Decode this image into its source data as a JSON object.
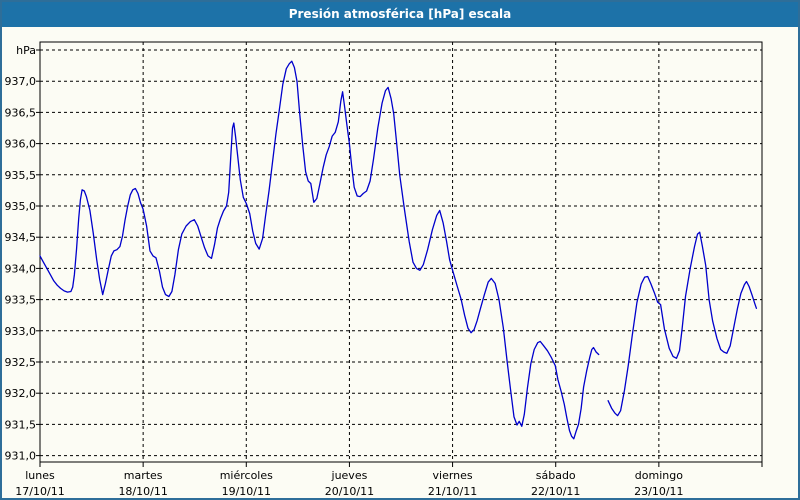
{
  "title_bar": {
    "title": "Presión atmosférica [hPa] escala",
    "bg_color": "#1d72a8",
    "text_color": "#ffffff"
  },
  "colors": {
    "outer_border": "#2e6e99",
    "background": "#fcfcf4",
    "plot_border": "#000000",
    "grid": "#000000",
    "axis_text": "#000000",
    "line": "#0000cc"
  },
  "chart_data": {
    "type": "line",
    "title": "Presión atmosférica [hPa] escala",
    "ylabel": "hPa",
    "top_axis_label": "hPa",
    "decimal_separator": ",",
    "grid": true,
    "ylim": [
      931.0,
      937.5
    ],
    "ytick_step": 0.5,
    "ytick_labels": [
      "937,0",
      "936,5",
      "936,0",
      "935,5",
      "935,0",
      "934,5",
      "934,0",
      "933,5",
      "933,0",
      "932,5",
      "932,0",
      "931,5",
      "931,0"
    ],
    "x_axis": {
      "hours_per_day": 24,
      "days": [
        {
          "name": "lunes",
          "date": "17/10/11"
        },
        {
          "name": "martes",
          "date": "18/10/11"
        },
        {
          "name": "miércoles",
          "date": "19/10/11"
        },
        {
          "name": "jueves",
          "date": "20/10/11"
        },
        {
          "name": "viernes",
          "date": "21/10/11"
        },
        {
          "name": "sábado",
          "date": "22/10/11"
        },
        {
          "name": "domingo",
          "date": "23/10/11"
        }
      ]
    },
    "series": [
      {
        "name": "Presión atmosférica",
        "color": "#0000cc",
        "unit": "hPa",
        "segments": [
          [
            [
              0,
              934.2
            ],
            [
              0.8,
              934.1
            ],
            [
              1.6,
              934.0
            ],
            [
              2.4,
              933.9
            ],
            [
              3.2,
              933.8
            ],
            [
              4.0,
              933.73
            ],
            [
              4.8,
              933.68
            ],
            [
              5.6,
              933.64
            ],
            [
              6.4,
              933.62
            ],
            [
              7.2,
              933.63
            ],
            [
              7.6,
              933.7
            ],
            [
              8.0,
              933.9
            ],
            [
              8.5,
              934.3
            ],
            [
              9.0,
              934.8
            ],
            [
              9.4,
              935.1
            ],
            [
              9.8,
              935.26
            ],
            [
              10.3,
              935.24
            ],
            [
              10.8,
              935.15
            ],
            [
              11.6,
              934.93
            ],
            [
              12.4,
              934.56
            ],
            [
              13.2,
              934.14
            ],
            [
              13.9,
              933.82
            ],
            [
              14.6,
              933.58
            ],
            [
              15.2,
              933.75
            ],
            [
              15.9,
              933.98
            ],
            [
              16.6,
              934.2
            ],
            [
              17.2,
              934.28
            ],
            [
              17.9,
              934.3
            ],
            [
              18.6,
              934.35
            ],
            [
              19.2,
              934.52
            ],
            [
              19.8,
              934.78
            ],
            [
              20.4,
              935.0
            ],
            [
              21.0,
              935.18
            ],
            [
              21.6,
              935.26
            ],
            [
              22.2,
              935.28
            ],
            [
              22.8,
              935.2
            ],
            [
              23.4,
              935.05
            ],
            [
              24.0,
              934.95
            ],
            [
              24.8,
              934.68
            ],
            [
              25.6,
              934.28
            ],
            [
              26.3,
              934.2
            ],
            [
              27.0,
              934.17
            ],
            [
              27.8,
              933.95
            ],
            [
              28.5,
              933.7
            ],
            [
              29.2,
              933.58
            ],
            [
              30.0,
              933.55
            ],
            [
              30.7,
              933.63
            ],
            [
              31.4,
              933.9
            ],
            [
              32.2,
              934.3
            ],
            [
              33.0,
              934.55
            ],
            [
              34.0,
              934.68
            ],
            [
              35.0,
              934.75
            ],
            [
              35.9,
              934.78
            ],
            [
              36.7,
              934.68
            ],
            [
              37.5,
              934.5
            ],
            [
              38.3,
              934.33
            ],
            [
              39.1,
              934.2
            ],
            [
              39.9,
              934.16
            ],
            [
              40.6,
              934.38
            ],
            [
              41.3,
              934.65
            ],
            [
              42.0,
              934.8
            ],
            [
              42.7,
              934.92
            ],
            [
              43.4,
              935.0
            ],
            [
              43.9,
              935.22
            ],
            [
              44.4,
              935.8
            ],
            [
              44.8,
              936.25
            ],
            [
              45.1,
              936.33
            ],
            [
              45.5,
              936.12
            ],
            [
              46.0,
              935.8
            ],
            [
              46.6,
              935.42
            ],
            [
              47.3,
              935.14
            ],
            [
              48.0,
              935.04
            ],
            [
              48.8,
              934.88
            ],
            [
              49.5,
              934.6
            ],
            [
              50.2,
              934.4
            ],
            [
              51.0,
              934.31
            ],
            [
              51.8,
              934.48
            ],
            [
              52.5,
              934.85
            ],
            [
              53.3,
              935.25
            ],
            [
              54.1,
              935.7
            ],
            [
              54.9,
              936.15
            ],
            [
              55.7,
              936.55
            ],
            [
              56.5,
              936.95
            ],
            [
              57.3,
              937.2
            ],
            [
              58.0,
              937.28
            ],
            [
              58.6,
              937.32
            ],
            [
              59.2,
              937.22
            ],
            [
              59.8,
              937.0
            ],
            [
              60.4,
              936.5
            ],
            [
              61.1,
              935.99
            ],
            [
              61.8,
              935.55
            ],
            [
              62.4,
              935.4
            ],
            [
              63.0,
              935.36
            ],
            [
              63.7,
              935.06
            ],
            [
              64.4,
              935.12
            ],
            [
              65.1,
              935.35
            ],
            [
              65.9,
              935.62
            ],
            [
              66.6,
              935.82
            ],
            [
              67.3,
              935.95
            ],
            [
              68.0,
              936.12
            ],
            [
              68.7,
              936.18
            ],
            [
              69.4,
              936.35
            ],
            [
              70.0,
              936.68
            ],
            [
              70.4,
              936.83
            ],
            [
              70.9,
              936.58
            ],
            [
              71.4,
              936.3
            ],
            [
              72.0,
              936.0
            ],
            [
              72.5,
              935.65
            ],
            [
              73.1,
              935.3
            ],
            [
              73.8,
              935.16
            ],
            [
              74.5,
              935.15
            ],
            [
              75.2,
              935.2
            ],
            [
              76.0,
              935.24
            ],
            [
              76.8,
              935.4
            ],
            [
              77.6,
              935.75
            ],
            [
              78.6,
              936.25
            ],
            [
              79.6,
              936.65
            ],
            [
              80.4,
              936.85
            ],
            [
              81.0,
              936.9
            ],
            [
              81.7,
              936.72
            ],
            [
              82.3,
              936.48
            ],
            [
              83.0,
              936.0
            ],
            [
              83.7,
              935.5
            ],
            [
              84.8,
              934.95
            ],
            [
              85.9,
              934.43
            ],
            [
              86.8,
              934.1
            ],
            [
              87.6,
              934.0
            ],
            [
              88.4,
              933.97
            ],
            [
              89.2,
              934.06
            ],
            [
              90.2,
              934.3
            ],
            [
              91.3,
              934.62
            ],
            [
              92.3,
              934.85
            ],
            [
              93.0,
              934.93
            ],
            [
              93.8,
              934.73
            ],
            [
              94.6,
              934.43
            ],
            [
              95.3,
              934.14
            ],
            [
              96.0,
              933.97
            ],
            [
              97.1,
              933.71
            ],
            [
              98.0,
              933.5
            ],
            [
              98.8,
              933.25
            ],
            [
              99.6,
              933.04
            ],
            [
              100.3,
              932.97
            ],
            [
              101.0,
              933.02
            ],
            [
              101.7,
              933.16
            ],
            [
              102.5,
              933.36
            ],
            [
              103.4,
              933.58
            ],
            [
              104.3,
              933.78
            ],
            [
              105.0,
              933.84
            ],
            [
              105.9,
              933.76
            ],
            [
              106.8,
              933.5
            ],
            [
              107.8,
              933.05
            ],
            [
              108.7,
              932.5
            ],
            [
              109.5,
              932.05
            ],
            [
              110.3,
              931.62
            ],
            [
              111.0,
              931.49
            ],
            [
              111.5,
              931.55
            ],
            [
              112.1,
              931.47
            ],
            [
              112.7,
              931.66
            ],
            [
              113.4,
              932.08
            ],
            [
              114.2,
              932.47
            ],
            [
              115.0,
              932.7
            ],
            [
              115.8,
              932.81
            ],
            [
              116.4,
              932.83
            ],
            [
              117.2,
              932.76
            ],
            [
              118.1,
              932.68
            ],
            [
              119.0,
              932.57
            ],
            [
              119.9,
              932.44
            ],
            [
              120.5,
              932.22
            ],
            [
              121.3,
              932.02
            ],
            [
              122.0,
              931.82
            ],
            [
              122.6,
              931.6
            ],
            [
              123.2,
              931.4
            ],
            [
              123.7,
              931.31
            ],
            [
              124.2,
              931.27
            ],
            [
              124.7,
              931.38
            ],
            [
              125.3,
              931.5
            ],
            [
              125.9,
              931.75
            ],
            [
              126.5,
              932.1
            ],
            [
              127.2,
              932.36
            ],
            [
              127.9,
              932.57
            ],
            [
              128.4,
              932.7
            ],
            [
              128.8,
              932.73
            ],
            [
              129.4,
              932.66
            ],
            [
              130.0,
              932.62
            ]
          ],
          [
            [
              132.2,
              931.88
            ],
            [
              133.0,
              931.76
            ],
            [
              133.8,
              931.68
            ],
            [
              134.4,
              931.64
            ],
            [
              135.1,
              931.72
            ],
            [
              136.0,
              932.05
            ],
            [
              136.9,
              932.45
            ],
            [
              137.8,
              932.92
            ],
            [
              138.9,
              933.45
            ],
            [
              139.9,
              933.75
            ],
            [
              140.7,
              933.86
            ],
            [
              141.4,
              933.87
            ],
            [
              142.1,
              933.76
            ],
            [
              143.0,
              933.6
            ],
            [
              143.7,
              933.46
            ],
            [
              144.4,
              933.42
            ],
            [
              145.3,
              933.03
            ],
            [
              146.4,
              932.72
            ],
            [
              147.3,
              932.59
            ],
            [
              148.1,
              932.56
            ],
            [
              148.8,
              932.68
            ],
            [
              149.4,
              933.03
            ],
            [
              150.2,
              933.55
            ],
            [
              151.3,
              934.0
            ],
            [
              152.3,
              934.35
            ],
            [
              153.0,
              934.55
            ],
            [
              153.5,
              934.58
            ],
            [
              154.1,
              934.36
            ],
            [
              154.9,
              934.05
            ],
            [
              155.7,
              933.5
            ],
            [
              156.5,
              933.16
            ],
            [
              157.5,
              932.88
            ],
            [
              158.4,
              932.7
            ],
            [
              159.1,
              932.66
            ],
            [
              159.8,
              932.64
            ],
            [
              160.6,
              932.76
            ],
            [
              161.5,
              933.08
            ],
            [
              162.3,
              933.36
            ],
            [
              163.1,
              933.6
            ],
            [
              163.9,
              933.74
            ],
            [
              164.4,
              933.79
            ],
            [
              165.0,
              933.71
            ],
            [
              165.7,
              933.57
            ],
            [
              166.3,
              933.44
            ],
            [
              166.7,
              933.36
            ]
          ]
        ]
      }
    ]
  }
}
